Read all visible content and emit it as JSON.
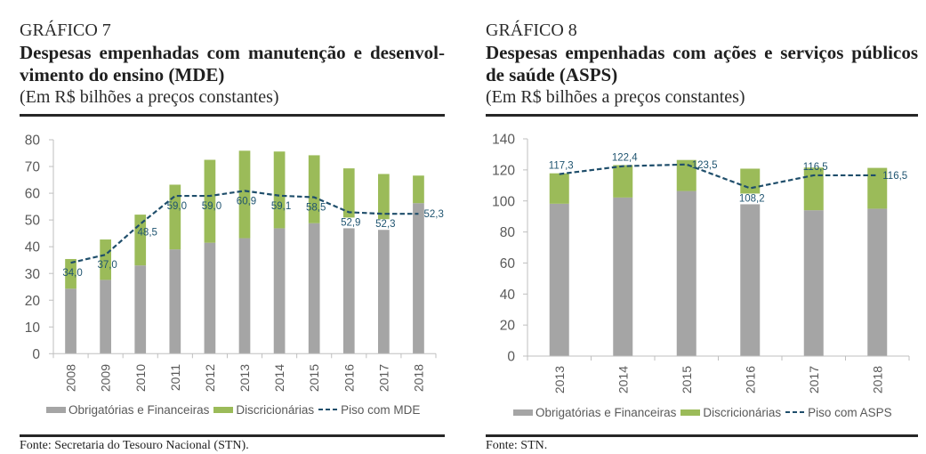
{
  "figures": [
    {
      "label": "GRÁFICO 7",
      "title_lines": [
        "Despesas empenhadas com manutenção e desenvol-",
        "vimento do ensino (MDE)"
      ],
      "subtitle": "(Em R$ bilhões a preços constantes)",
      "source": "Fonte: Secretaria do Tesouro Nacional (STN)."
    },
    {
      "label": "GRÁFICO 8",
      "title_lines": [
        "Despesas empenhadas com ações e serviços públicos",
        "de saúde (ASPS)"
      ],
      "subtitle": "(Em R$ bilhões a preços constantes)",
      "source": "Fonte: STN."
    }
  ],
  "colors": {
    "text": "#262626",
    "axis": "#BFBFBF",
    "axis_text": "#595959",
    "data_label": "#1F5470"
  },
  "chart_data": [
    {
      "type": "bar",
      "stacked": true,
      "title": "Despesas empenhadas com manutenção e desenvolvimento do ensino (MDE)",
      "subtitle": "(Em R$ bilhões a preços constantes)",
      "xlabel": "",
      "ylabel": "",
      "ylim": [
        0,
        80
      ],
      "yticks": [
        0,
        10,
        20,
        30,
        40,
        50,
        60,
        70,
        80
      ],
      "grid": false,
      "legend": "bottom",
      "categories": [
        "2008",
        "2009",
        "2010",
        "2011",
        "2012",
        "2013",
        "2014",
        "2015",
        "2016",
        "2017",
        "2018"
      ],
      "series": [
        {
          "key": "obrigatorias",
          "name": "Obrigatórias e Financeiras",
          "type": "bar",
          "color": "#A5A5A5",
          "values": [
            24.3,
            27.6,
            33.0,
            39.0,
            41.5,
            43.2,
            46.9,
            48.8,
            50.0,
            49.5,
            56.3
          ]
        },
        {
          "key": "discricionarias",
          "name": "Discricionárias",
          "type": "bar",
          "color": "#9BBB59",
          "values": [
            11.1,
            15.1,
            19.0,
            24.2,
            31.0,
            32.7,
            28.7,
            25.4,
            19.3,
            17.7,
            10.3
          ]
        },
        {
          "key": "piso-mde",
          "name": "Piso com MDE",
          "type": "line",
          "style": "dashed",
          "color": "#1F4E6B",
          "values": [
            34.0,
            37.0,
            48.5,
            59.0,
            59.0,
            60.9,
            59.1,
            58.5,
            52.9,
            52.3,
            52.3
          ],
          "labels": [
            "34,0",
            "37,0",
            "48,5",
            "59,0",
            "59,0",
            "60,9",
            "59,1",
            "58,5",
            "52,9",
            "52,3",
            "52,3"
          ],
          "label_positions": [
            "below",
            "below",
            "below-right",
            "below",
            "below",
            "below",
            "below",
            "below",
            "below",
            "below",
            "right"
          ]
        }
      ]
    },
    {
      "type": "bar",
      "stacked": true,
      "title": "Despesas empenhadas com ações e serviços públicos de saúde (ASPS)",
      "subtitle": "(Em R$ bilhões a preços constantes)",
      "xlabel": "",
      "ylabel": "",
      "ylim": [
        0,
        140
      ],
      "yticks": [
        0,
        20,
        40,
        60,
        80,
        100,
        120,
        140
      ],
      "grid": false,
      "legend": "bottom",
      "categories": [
        "2013",
        "2014",
        "2015",
        "2016",
        "2017",
        "2018"
      ],
      "series": [
        {
          "key": "obrigatorias",
          "name": "Obrigatórias e Financeiras",
          "type": "bar",
          "color": "#A5A5A5",
          "values": [
            98.2,
            102.2,
            106.4,
            99.1,
            94.0,
            95.0
          ]
        },
        {
          "key": "discricionarias",
          "name": "Discricionárias",
          "type": "bar",
          "color": "#9BBB59",
          "values": [
            19.6,
            20.9,
            20.0,
            21.7,
            27.5,
            26.3
          ]
        },
        {
          "key": "piso-asps",
          "name": "Piso com ASPS",
          "type": "line",
          "style": "dashed",
          "color": "#1F4E6B",
          "values": [
            117.3,
            122.4,
            123.5,
            108.2,
            116.5,
            116.5
          ],
          "labels": [
            "117,3",
            "122,4",
            "123,5",
            "108,2",
            "116,5",
            "116,5"
          ],
          "label_positions": [
            "above",
            "above",
            "right",
            "below",
            "above",
            "right"
          ]
        }
      ]
    }
  ]
}
